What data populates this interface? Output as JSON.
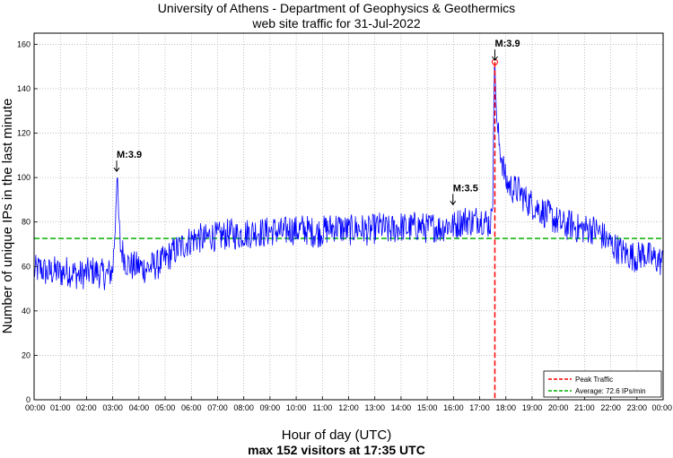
{
  "chart_data": {
    "type": "line",
    "title": "University of Athens - Department of Geophysics & Geothermics",
    "subtitle": "web site traffic for 31-Jul-2022",
    "xlabel": "Hour of day (UTC)",
    "ylabel": "Number of unique IPs in the last minute",
    "footer": "max 152 visitors at 17:35 UTC",
    "xlim": [
      0,
      24
    ],
    "ylim": [
      0,
      165
    ],
    "yticks": [
      0,
      20,
      40,
      60,
      80,
      100,
      120,
      140,
      160
    ],
    "xtick_labels": [
      "00:00",
      "01:00",
      "02:00",
      "03:00",
      "04:00",
      "05:00",
      "06:00",
      "07:00",
      "08:00",
      "09:00",
      "10:00",
      "11:00",
      "12:00",
      "13:00",
      "14:00",
      "15:00",
      "16:00",
      "17:00",
      "18:00",
      "19:00",
      "20:00",
      "21:00",
      "22:00",
      "23:00",
      "00:00"
    ],
    "grid": true,
    "legend_position": "bottom-right",
    "series": [
      {
        "color": "#0000ff",
        "x_hours": [
          0,
          0.25,
          0.5,
          0.75,
          1,
          1.25,
          1.5,
          1.75,
          2,
          2.25,
          2.5,
          2.75,
          3,
          3.1,
          3.15,
          3.2,
          3.25,
          3.3,
          3.4,
          3.5,
          3.75,
          4,
          4.25,
          4.5,
          4.75,
          5,
          5.25,
          5.5,
          5.75,
          6,
          6.25,
          6.5,
          6.75,
          7,
          7.25,
          7.5,
          7.75,
          8,
          8.25,
          8.5,
          8.75,
          9,
          9.25,
          9.5,
          9.75,
          10,
          10.25,
          10.5,
          10.75,
          11,
          11.25,
          11.5,
          11.75,
          12,
          12.25,
          12.5,
          12.75,
          13,
          13.25,
          13.5,
          13.75,
          14,
          14.25,
          14.5,
          14.75,
          15,
          15.25,
          15.5,
          15.75,
          16,
          16.25,
          16.5,
          16.75,
          17,
          17.25,
          17.4,
          17.5,
          17.55,
          17.58,
          17.65,
          17.75,
          17.9,
          18,
          18.25,
          18.5,
          18.75,
          19,
          19.25,
          19.5,
          19.75,
          20,
          20.25,
          20.5,
          20.75,
          21,
          21.25,
          21.5,
          21.75,
          22,
          22.25,
          22.5,
          22.75,
          23,
          23.25,
          23.5,
          23.75,
          24
        ],
        "values": [
          58,
          59,
          57,
          58,
          57,
          58,
          57,
          56,
          57,
          58,
          57,
          56,
          58,
          80,
          102,
          90,
          76,
          68,
          66,
          62,
          60,
          60,
          59,
          60,
          61,
          63,
          66,
          68,
          70,
          72,
          73,
          72,
          74,
          73,
          74,
          75,
          74,
          75,
          75,
          76,
          75,
          76,
          76,
          75,
          77,
          76,
          77,
          76,
          75,
          76,
          77,
          78,
          77,
          76,
          77,
          77,
          76,
          77,
          78,
          76,
          77,
          78,
          77,
          78,
          78,
          77,
          78,
          77,
          79,
          78,
          80,
          81,
          80,
          82,
          80,
          79,
          88,
          145,
          152,
          125,
          115,
          105,
          98,
          95,
          94,
          90,
          88,
          86,
          84,
          82,
          80,
          78,
          79,
          77,
          77,
          77,
          76,
          73,
          70,
          68,
          66,
          65,
          64,
          66,
          64,
          63,
          62
        ]
      }
    ],
    "average": 72.6,
    "peak": {
      "time": "17:35",
      "x_hours": 17.58,
      "value": 152
    },
    "annotations": [
      {
        "label": "M:3.9",
        "x_hours": 3.15,
        "value": 102
      },
      {
        "label": "M:3.5",
        "x_hours": 15.98,
        "value": 87
      },
      {
        "label": "M:3.9",
        "x_hours": 17.58,
        "value": 152
      }
    ],
    "legend": [
      {
        "label": "Peak Traffic",
        "color": "#ff0000",
        "style": "dashed"
      },
      {
        "label": "Average: 72.6 IPs/min",
        "color": "#00b000",
        "style": "dashed"
      }
    ]
  }
}
